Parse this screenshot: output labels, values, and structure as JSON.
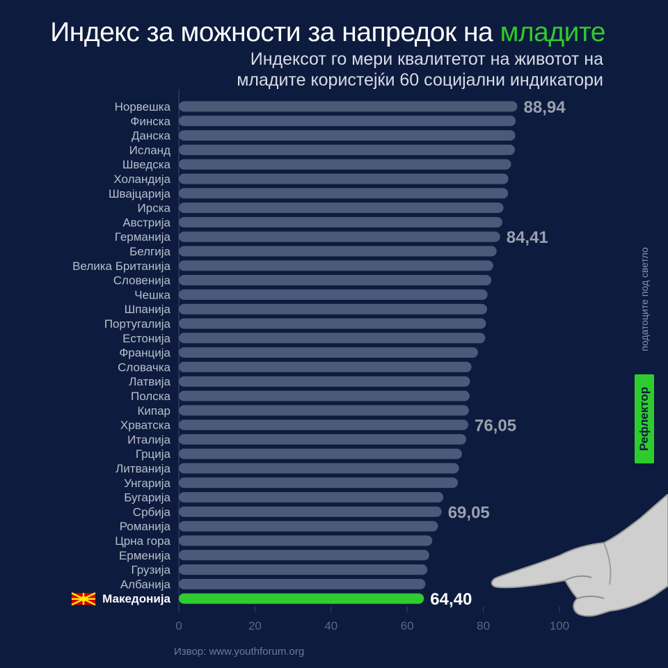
{
  "header": {
    "title_main": "Индекс за можности за напредок на",
    "title_accent": "младите",
    "subtitle_line1": "Индексот го мери квалитетот на животот на",
    "subtitle_line2": "младите користејќи 60 социјални индикатори"
  },
  "source": "Извор: www.youthforum.org",
  "brand": {
    "name": "Рефлектор",
    "tagline": "податоците под светло"
  },
  "colors": {
    "background": "#0d1b3e",
    "bar": "#4a5a78",
    "highlight_bar": "#2ecc2e",
    "accent": "#2ecc2e",
    "axis_text": "#5b6684",
    "value_label": "#9aa0ad"
  },
  "chart_data": {
    "type": "bar",
    "orientation": "horizontal",
    "title": "Индекс за можности за напредок на младите",
    "subtitle": "Индексот го мери квалитетот на животот на младите користејќи 60 социјални индикатори",
    "categories": [
      "Норвешка",
      "Финска",
      "Данска",
      "Исланд",
      "Шведска",
      "Холандија",
      "Швајцарија",
      "Ирска",
      "Австрија",
      "Германија",
      "Белгија",
      "Велика Британија",
      "Словенија",
      "Чешка",
      "Шпанија",
      "Португалија",
      "Естонија",
      "Франција",
      "Словачка",
      "Латвија",
      "Полска",
      "Кипар",
      "Хрватска",
      "Италија",
      "Грција",
      "Литванија",
      "Унгарија",
      "Бугарија",
      "Србија",
      "Романија",
      "Црна гора",
      "Ерменија",
      "Грузија",
      "Албанија",
      "Македонија"
    ],
    "values": [
      88.94,
      88.5,
      88.4,
      88.3,
      87.3,
      86.6,
      86.5,
      85.3,
      85.0,
      84.41,
      83.5,
      82.6,
      82.1,
      81.1,
      81.0,
      80.7,
      80.5,
      78.6,
      76.9,
      76.5,
      76.4,
      76.2,
      76.05,
      75.5,
      74.4,
      73.6,
      73.3,
      69.5,
      69.05,
      68.1,
      66.6,
      65.8,
      65.3,
      64.8,
      64.4
    ],
    "data_labels": [
      {
        "category": "Норвешка",
        "text": "88,94"
      },
      {
        "category": "Германија",
        "text": "84,41"
      },
      {
        "category": "Хрватска",
        "text": "76,05"
      },
      {
        "category": "Србија",
        "text": "69,05"
      },
      {
        "category": "Македонија",
        "text": "64,40"
      }
    ],
    "highlight": "Македонија",
    "xlim": [
      0,
      100
    ],
    "xticks": [
      0,
      20,
      40,
      60,
      80,
      100
    ],
    "grid": false
  }
}
